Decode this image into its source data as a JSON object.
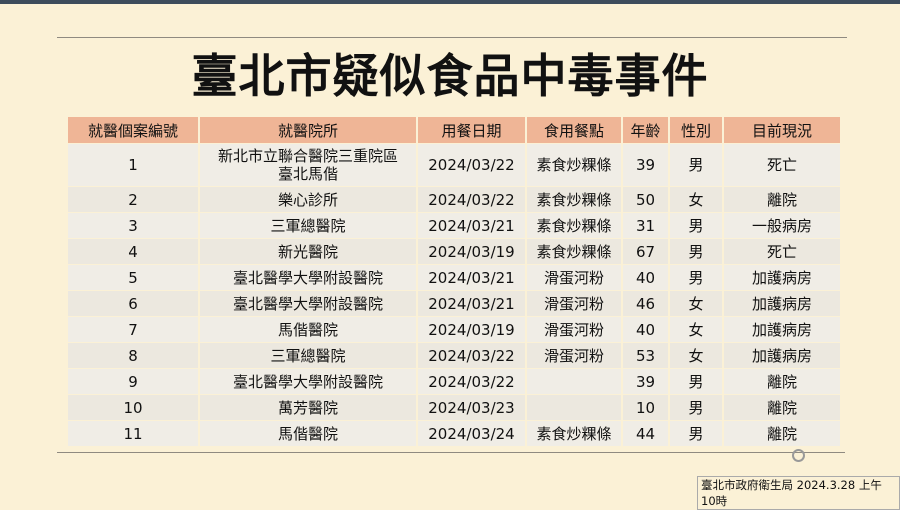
{
  "title": "臺北市疑似食品中毒事件",
  "columns": [
    "就醫個案編號",
    "就醫院所",
    "用餐日期",
    "食用餐點",
    "年齡",
    "性別",
    "目前現況"
  ],
  "rows": [
    [
      "1",
      "新北市立聯合醫院三重院區\n臺北馬偕",
      "2024/03/22",
      "素食炒粿條",
      "39",
      "男",
      "死亡"
    ],
    [
      "2",
      "樂心診所",
      "2024/03/22",
      "素食炒粿條",
      "50",
      "女",
      "離院"
    ],
    [
      "3",
      "三軍總醫院",
      "2024/03/21",
      "素食炒粿條",
      "31",
      "男",
      "一般病房"
    ],
    [
      "4",
      "新光醫院",
      "2024/03/19",
      "素食炒粿條",
      "67",
      "男",
      "死亡"
    ],
    [
      "5",
      "臺北醫學大學附設醫院",
      "2024/03/21",
      "滑蛋河粉",
      "40",
      "男",
      "加護病房"
    ],
    [
      "6",
      "臺北醫學大學附設醫院",
      "2024/03/21",
      "滑蛋河粉",
      "46",
      "女",
      "加護病房"
    ],
    [
      "7",
      "馬偕醫院",
      "2024/03/19",
      "滑蛋河粉",
      "40",
      "女",
      "加護病房"
    ],
    [
      "8",
      "三軍總醫院",
      "2024/03/22",
      "滑蛋河粉",
      "53",
      "女",
      "加護病房"
    ],
    [
      "9",
      "臺北醫學大學附設醫院",
      "2024/03/22",
      "",
      "39",
      "男",
      "離院"
    ],
    [
      "10",
      "萬芳醫院",
      "2024/03/23",
      "",
      "10",
      "男",
      "離院"
    ],
    [
      "11",
      "馬偕醫院",
      "2024/03/24",
      "素食炒粿條",
      "44",
      "男",
      "離院"
    ]
  ],
  "credit": "臺北市政府衛生局 2024.3.28 上午10時"
}
